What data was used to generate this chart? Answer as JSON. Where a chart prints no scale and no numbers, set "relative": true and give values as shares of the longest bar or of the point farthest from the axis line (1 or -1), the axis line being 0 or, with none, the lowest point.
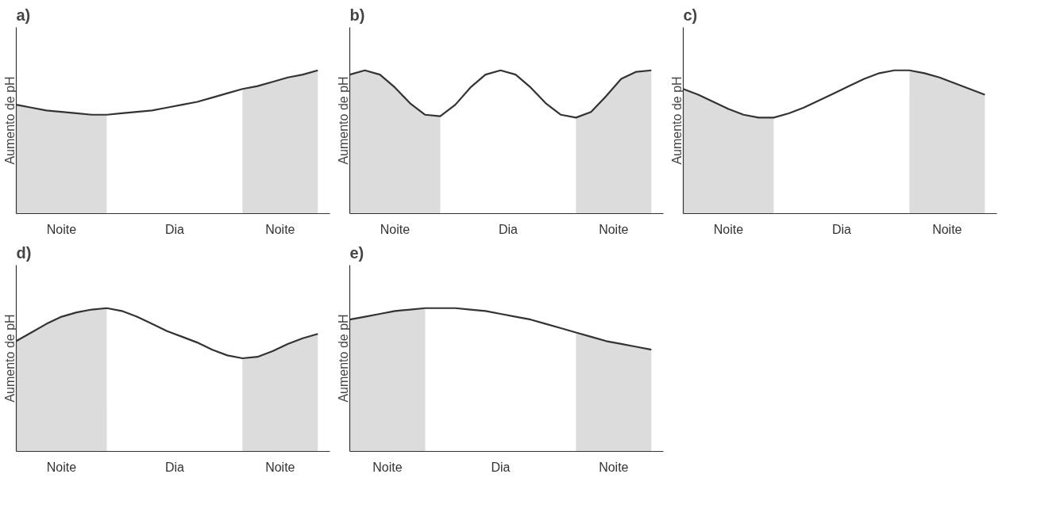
{
  "chart_data": [
    {
      "type": "line",
      "title": "a)",
      "ylabel": "Aumento de pH",
      "relative": true,
      "annotations": [
        "Noite",
        "Dia",
        "Noite"
      ],
      "categories": [
        null,
        null,
        null,
        null,
        null,
        null,
        null,
        null,
        null,
        null,
        null,
        null,
        null,
        null,
        null,
        null,
        null,
        null,
        null,
        null,
        null
      ],
      "series": [
        {
          "type": "area",
          "color": "#dcdcdc",
          "values": [
            0.76,
            0.74,
            0.72,
            0.71,
            0.7,
            0.69,
            0.69,
            null,
            null,
            null,
            null,
            null,
            null,
            null,
            null,
            0.87,
            0.89,
            0.92,
            0.95,
            0.97,
            1.0
          ]
        },
        {
          "color": "#333333",
          "values": [
            0.76,
            0.74,
            0.72,
            0.71,
            0.7,
            0.69,
            0.69,
            0.7,
            0.71,
            0.72,
            0.74,
            0.76,
            0.78,
            0.81,
            0.84,
            0.87,
            0.89,
            0.92,
            0.95,
            0.97,
            1.0
          ]
        }
      ]
    },
    {
      "type": "line",
      "title": "b)",
      "ylabel": "Aumento de pH",
      "relative": true,
      "annotations": [
        "Noite",
        "Dia",
        "Noite"
      ],
      "categories": [
        null,
        null,
        null,
        null,
        null,
        null,
        null,
        null,
        null,
        null,
        null,
        null,
        null,
        null,
        null,
        null,
        null,
        null,
        null,
        null,
        null
      ],
      "series": [
        {
          "type": "area",
          "color": "#dcdcdc",
          "values": [
            0.97,
            1.0,
            0.97,
            0.88,
            0.77,
            0.69,
            0.68,
            null,
            null,
            null,
            null,
            null,
            null,
            null,
            null,
            0.67,
            0.71,
            0.82,
            0.94,
            0.99,
            1.0
          ]
        },
        {
          "color": "#333333",
          "values": [
            0.97,
            1.0,
            0.97,
            0.88,
            0.77,
            0.69,
            0.68,
            0.76,
            0.88,
            0.97,
            1.0,
            0.97,
            0.88,
            0.77,
            0.69,
            0.67,
            0.71,
            0.82,
            0.94,
            0.99,
            1.0
          ]
        }
      ]
    },
    {
      "type": "line",
      "title": "c)",
      "ylabel": "Aumento de pH",
      "relative": true,
      "annotations": [
        "Noite",
        "Dia",
        "Noite"
      ],
      "categories": [
        null,
        null,
        null,
        null,
        null,
        null,
        null,
        null,
        null,
        null,
        null,
        null,
        null,
        null,
        null,
        null,
        null,
        null,
        null,
        null,
        null
      ],
      "series": [
        {
          "type": "area",
          "color": "#dcdcdc",
          "values": [
            0.87,
            0.83,
            0.78,
            0.73,
            0.69,
            0.67,
            0.67,
            null,
            null,
            null,
            null,
            null,
            null,
            null,
            null,
            1.0,
            0.98,
            0.95,
            0.91,
            0.87,
            0.83
          ]
        },
        {
          "color": "#333333",
          "values": [
            0.87,
            0.83,
            0.78,
            0.73,
            0.69,
            0.67,
            0.67,
            0.7,
            0.74,
            0.79,
            0.84,
            0.89,
            0.94,
            0.98,
            1.0,
            1.0,
            0.98,
            0.95,
            0.91,
            0.87,
            0.83
          ]
        }
      ]
    },
    {
      "type": "line",
      "title": "d)",
      "ylabel": "Aumento de pH",
      "relative": true,
      "annotations": [
        "Noite",
        "Dia",
        "Noite"
      ],
      "categories": [
        null,
        null,
        null,
        null,
        null,
        null,
        null,
        null,
        null,
        null,
        null,
        null,
        null,
        null,
        null,
        null,
        null,
        null,
        null,
        null,
        null
      ],
      "series": [
        {
          "type": "area",
          "color": "#dcdcdc",
          "values": [
            0.77,
            0.83,
            0.89,
            0.94,
            0.97,
            0.99,
            1.0,
            null,
            null,
            null,
            null,
            null,
            null,
            null,
            null,
            0.65,
            0.66,
            0.7,
            0.75,
            0.79,
            0.82
          ]
        },
        {
          "color": "#333333",
          "values": [
            0.77,
            0.83,
            0.89,
            0.94,
            0.97,
            0.99,
            1.0,
            0.98,
            0.94,
            0.89,
            0.84,
            0.8,
            0.76,
            0.71,
            0.67,
            0.65,
            0.66,
            0.7,
            0.75,
            0.79,
            0.82
          ]
        }
      ]
    },
    {
      "type": "line",
      "title": "e)",
      "ylabel": "Aumento de pH",
      "relative": true,
      "annotations": [
        "Noite",
        "Dia",
        "Noite"
      ],
      "categories": [
        null,
        null,
        null,
        null,
        null,
        null,
        null,
        null,
        null,
        null,
        null,
        null,
        null,
        null,
        null,
        null,
        null,
        null,
        null,
        null,
        null
      ],
      "series": [
        {
          "type": "area",
          "color": "#dcdcdc",
          "values": [
            0.92,
            0.94,
            0.96,
            0.98,
            0.99,
            1.0,
            null,
            null,
            null,
            null,
            null,
            null,
            null,
            null,
            null,
            0.83,
            0.8,
            0.77,
            0.75,
            0.73,
            0.71
          ]
        },
        {
          "color": "#333333",
          "values": [
            0.92,
            0.94,
            0.96,
            0.98,
            0.99,
            1.0,
            1.0,
            1.0,
            0.99,
            0.98,
            0.96,
            0.94,
            0.92,
            0.89,
            0.86,
            0.83,
            0.8,
            0.77,
            0.75,
            0.73,
            0.71
          ]
        }
      ]
    }
  ]
}
